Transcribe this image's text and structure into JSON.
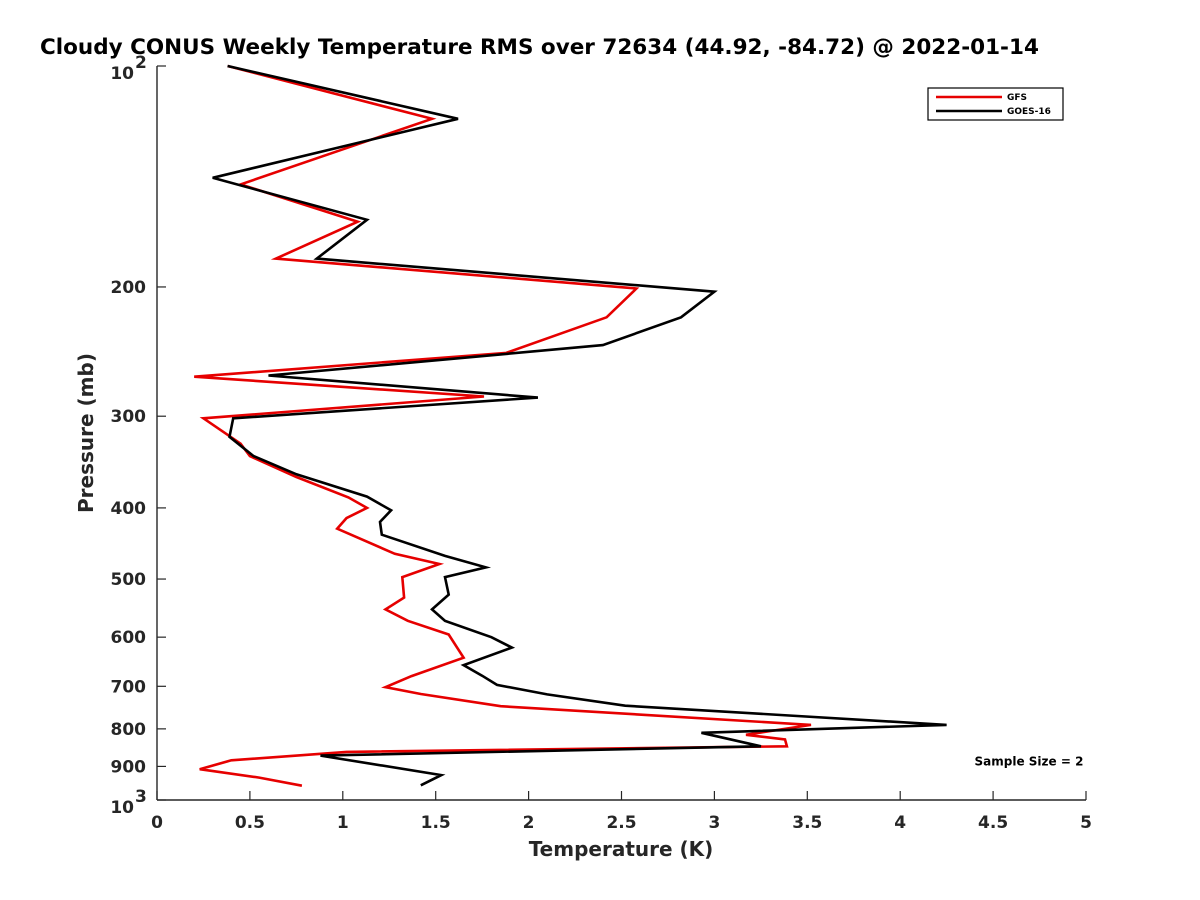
{
  "chart_data": {
    "type": "line",
    "title": "Cloudy CONUS Weekly Temperature RMS over 72634 (44.92, -84.72) @ 2022-01-14",
    "xlabel": "Temperature (K)",
    "ylabel": "Pressure (mb)",
    "xlim": [
      0,
      5
    ],
    "ylim": [
      100,
      1000
    ],
    "y_scale": "log",
    "y_reversed": true,
    "grid": false,
    "legend_position": "top-right",
    "x_ticks": [
      {
        "value": 0,
        "label": "0"
      },
      {
        "value": 0.5,
        "label": "0.5"
      },
      {
        "value": 1,
        "label": "1"
      },
      {
        "value": 1.5,
        "label": "1.5"
      },
      {
        "value": 2,
        "label": "2"
      },
      {
        "value": 2.5,
        "label": "2.5"
      },
      {
        "value": 3,
        "label": "3"
      },
      {
        "value": 3.5,
        "label": "3.5"
      },
      {
        "value": 4,
        "label": "4"
      },
      {
        "value": 4.5,
        "label": "4.5"
      },
      {
        "value": 5,
        "label": "5"
      }
    ],
    "y_ticks": [
      {
        "value": 100,
        "label": "10",
        "exp": "2"
      },
      {
        "value": 200,
        "label": "200",
        "exp": ""
      },
      {
        "value": 300,
        "label": "300",
        "exp": ""
      },
      {
        "value": 400,
        "label": "400",
        "exp": ""
      },
      {
        "value": 500,
        "label": "500",
        "exp": ""
      },
      {
        "value": 600,
        "label": "600",
        "exp": ""
      },
      {
        "value": 700,
        "label": "700",
        "exp": ""
      },
      {
        "value": 800,
        "label": "800",
        "exp": ""
      },
      {
        "value": 900,
        "label": "900",
        "exp": ""
      },
      {
        "value": 1000,
        "label": "10",
        "exp": "3"
      }
    ],
    "series": [
      {
        "name": "GFS",
        "color": "#e60000",
        "points": [
          [
            0.38,
            100
          ],
          [
            1.48,
            118
          ],
          [
            0.45,
            145
          ],
          [
            1.08,
            163
          ],
          [
            0.64,
            183
          ],
          [
            2.58,
            201
          ],
          [
            2.42,
            220
          ],
          [
            1.88,
            246
          ],
          [
            0.2,
            265
          ],
          [
            1.76,
            282
          ],
          [
            0.25,
            302
          ],
          [
            0.45,
            327
          ],
          [
            0.5,
            340
          ],
          [
            0.75,
            363
          ],
          [
            1.03,
            387
          ],
          [
            1.13,
            400
          ],
          [
            1.02,
            413
          ],
          [
            0.97,
            427
          ],
          [
            1.28,
            462
          ],
          [
            1.52,
            477
          ],
          [
            1.32,
            497
          ],
          [
            1.33,
            530
          ],
          [
            1.23,
            550
          ],
          [
            1.35,
            570
          ],
          [
            1.57,
            595
          ],
          [
            1.65,
            640
          ],
          [
            1.37,
            678
          ],
          [
            1.23,
            702
          ],
          [
            1.42,
            717
          ],
          [
            1.85,
            745
          ],
          [
            3.52,
            790
          ],
          [
            3.17,
            815
          ],
          [
            3.38,
            827
          ],
          [
            3.39,
            845
          ],
          [
            1.02,
            860
          ],
          [
            0.4,
            883
          ],
          [
            0.23,
            908
          ],
          [
            0.55,
            932
          ],
          [
            0.78,
            956
          ]
        ]
      },
      {
        "name": "GOES-16",
        "color": "#000000",
        "points": [
          [
            0.38,
            100
          ],
          [
            1.62,
            118
          ],
          [
            0.3,
            142
          ],
          [
            1.13,
            162
          ],
          [
            0.86,
            183
          ],
          [
            3.0,
            203
          ],
          [
            2.82,
            220
          ],
          [
            2.4,
            240
          ],
          [
            0.6,
            264
          ],
          [
            2.05,
            283
          ],
          [
            0.41,
            302
          ],
          [
            0.39,
            320
          ],
          [
            0.52,
            340
          ],
          [
            0.75,
            360
          ],
          [
            1.13,
            386
          ],
          [
            1.26,
            403
          ],
          [
            1.2,
            418
          ],
          [
            1.21,
            435
          ],
          [
            1.55,
            465
          ],
          [
            1.77,
            482
          ],
          [
            1.55,
            497
          ],
          [
            1.57,
            525
          ],
          [
            1.48,
            550
          ],
          [
            1.55,
            570
          ],
          [
            1.8,
            600
          ],
          [
            1.91,
            620
          ],
          [
            1.65,
            655
          ],
          [
            1.75,
            677
          ],
          [
            1.83,
            697
          ],
          [
            2.1,
            718
          ],
          [
            2.52,
            744
          ],
          [
            4.25,
            790
          ],
          [
            2.93,
            810
          ],
          [
            3.25,
            845
          ],
          [
            0.88,
            870
          ],
          [
            1.53,
            925
          ],
          [
            1.42,
            955
          ]
        ]
      }
    ],
    "annotations": [
      {
        "text": "Sample Size = 2",
        "x": 4.4,
        "y": 897
      }
    ]
  }
}
